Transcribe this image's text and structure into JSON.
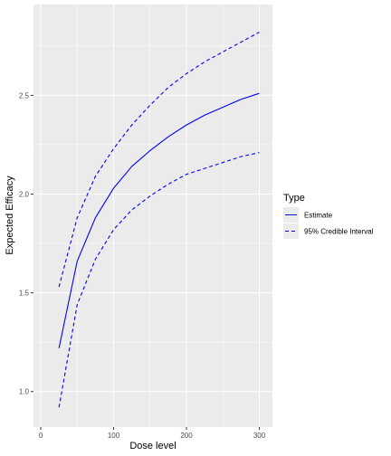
{
  "chart_data": {
    "type": "line",
    "xlabel": "Dose level",
    "ylabel": "Expected Efficacy",
    "xlim": [
      -10,
      318
    ],
    "ylim": [
      0.82,
      2.96
    ],
    "x_ticks": [
      0,
      100,
      200,
      300
    ],
    "x_tick_labels": [
      "0",
      "100",
      "200",
      "300"
    ],
    "y_ticks": [
      1.0,
      1.5,
      2.0,
      2.5
    ],
    "y_tick_labels": [
      "1.0",
      "1.5",
      "2.0",
      "2.5"
    ],
    "grid": true,
    "legend": {
      "title": "Type",
      "position": "right",
      "entries": [
        "Estimate",
        "95% Credible Interval"
      ]
    },
    "x": [
      25,
      50,
      75,
      100,
      125,
      150,
      175,
      200,
      225,
      250,
      275,
      300
    ],
    "series": [
      {
        "name": "Estimate",
        "style": "solid",
        "color": "#0000ff",
        "values": [
          1.22,
          1.66,
          1.88,
          2.03,
          2.14,
          2.22,
          2.29,
          2.35,
          2.4,
          2.44,
          2.48,
          2.51
        ]
      },
      {
        "name": "95% Credible Interval",
        "style": "dashed",
        "color": "#0000ff",
        "values": [
          1.53,
          1.88,
          2.09,
          2.23,
          2.35,
          2.45,
          2.54,
          2.61,
          2.67,
          2.72,
          2.77,
          2.82
        ]
      },
      {
        "name": "95% Credible Interval",
        "style": "dashed",
        "color": "#0000ff",
        "values": [
          0.92,
          1.44,
          1.67,
          1.82,
          1.92,
          1.99,
          2.05,
          2.1,
          2.13,
          2.16,
          2.19,
          2.21
        ]
      }
    ]
  }
}
